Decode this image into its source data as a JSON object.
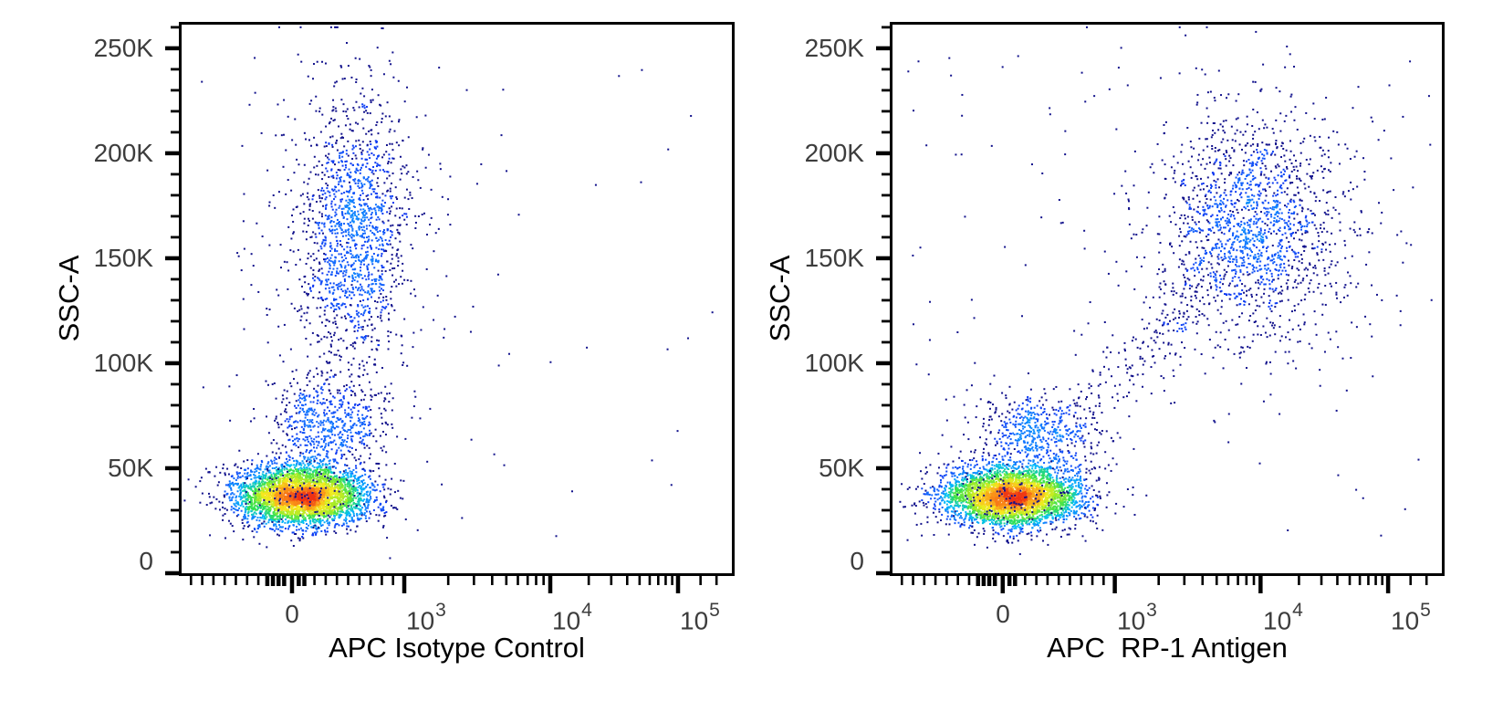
{
  "figure": {
    "background": "#ffffff",
    "description": "Two-panel flow cytometry pseudocolor dot plot, SSC-A versus APC fluorescence"
  },
  "colors": {
    "axis": "#000000",
    "tick_label": "#3d3d3d",
    "density_scale": [
      "#08088f",
      "#0a1eeb",
      "#146eff",
      "#00befa",
      "#32e150",
      "#a0eb28",
      "#f5eb1e",
      "#fa9619",
      "#ee3214"
    ],
    "sparse_dot": "#12128c"
  },
  "chart_data": [
    {
      "type": "scatter",
      "subtype": "flow_cytometry_pseudocolor_density",
      "panel": "left",
      "xlabel": "APC Isotype Control",
      "ylabel": "SSC-A",
      "x_scale": "biexponential",
      "y_scale": "linear",
      "y_range": [
        0,
        262144
      ],
      "x_ticks": [
        {
          "label": "0",
          "base": "0",
          "exp": "",
          "value": 0
        },
        {
          "label": "10^3",
          "base": "10",
          "exp": "3",
          "value": 1000
        },
        {
          "label": "10^4",
          "base": "10",
          "exp": "4",
          "value": 10000
        },
        {
          "label": "10^5",
          "base": "10",
          "exp": "5",
          "value": 100000
        }
      ],
      "y_ticks": [
        {
          "label": "250K",
          "value": 250000
        },
        {
          "label": "200K",
          "value": 200000
        },
        {
          "label": "150K",
          "value": 150000
        },
        {
          "label": "100K",
          "value": 100000
        },
        {
          "label": "50K",
          "value": 50000
        },
        {
          "label": "0",
          "value": 0
        }
      ],
      "x_scale_anchors": {
        "zero": 0.2036,
        "e3": 0.4056,
        "e4": 0.6683,
        "e5": 0.8982
      },
      "y_minor_step": 10000,
      "populations": [
        {
          "name": "main-low-ssc-population",
          "kind": "gauss",
          "apc_center": 80,
          "apc_sigma": 300,
          "ssc_center": 37000,
          "ssc_sigma": 7200,
          "n": 3900
        },
        {
          "name": "funnel-above-main",
          "kind": "gauss",
          "apc_center": 320,
          "apc_sigma": 260,
          "ssc_center": 70000,
          "ssc_sigma": 11000,
          "n": 560
        },
        {
          "name": "high-ssc-smear",
          "kind": "gauss",
          "apc_center": 550,
          "apc_sigma": 230,
          "ssc_center": 160000,
          "ssc_sigma": 32000,
          "n": 1260
        },
        {
          "name": "high-ssc-smear-halo",
          "kind": "gauss",
          "apc_center": 520,
          "apc_sigma": 400,
          "ssc_center": 158000,
          "ssc_sigma": 45000,
          "n": 320
        },
        {
          "name": "overplot-speckle",
          "kind": "gauss",
          "apc_center": 80,
          "apc_sigma": 320,
          "ssc_center": 37000,
          "ssc_sigma": 7800,
          "n": 130,
          "color": "navy"
        },
        {
          "name": "sparse-left-region",
          "kind": "uniform",
          "u_range": [
            0.03,
            0.62
          ],
          "ssc_range": [
            15000,
            248000
          ],
          "n": 70
        },
        {
          "name": "sparse-whole-plot",
          "kind": "uniform",
          "u_range": [
            0.03,
            0.97
          ],
          "ssc_range": [
            15000,
            248000
          ],
          "n": 40
        }
      ]
    },
    {
      "type": "scatter",
      "subtype": "flow_cytometry_pseudocolor_density",
      "panel": "right",
      "xlabel": "APC  RP-1 Antigen",
      "ylabel": "SSC-A",
      "x_scale": "biexponential",
      "y_scale": "linear",
      "y_range": [
        0,
        262144
      ],
      "x_ticks": [
        {
          "label": "0",
          "base": "0",
          "exp": "",
          "value": 0
        },
        {
          "label": "10^3",
          "base": "10",
          "exp": "3",
          "value": 1000
        },
        {
          "label": "10^4",
          "base": "10",
          "exp": "4",
          "value": 10000
        },
        {
          "label": "10^5",
          "base": "10",
          "exp": "5",
          "value": 100000
        }
      ],
      "y_ticks": [
        {
          "label": "250K",
          "value": 250000
        },
        {
          "label": "200K",
          "value": 200000
        },
        {
          "label": "150K",
          "value": 150000
        },
        {
          "label": "100K",
          "value": 100000
        },
        {
          "label": "50K",
          "value": 50000
        },
        {
          "label": "0",
          "value": 0
        }
      ],
      "x_scale_anchors": {
        "zero": 0.2036,
        "e3": 0.4056,
        "e4": 0.6683,
        "e5": 0.8982
      },
      "y_minor_step": 10000,
      "populations": [
        {
          "name": "main-low-ssc-population",
          "kind": "gauss",
          "apc_center": 80,
          "apc_sigma": 310,
          "ssc_center": 36500,
          "ssc_sigma": 7200,
          "n": 3900
        },
        {
          "name": "funnel-above-main",
          "kind": "gauss",
          "apc_center": 300,
          "apc_sigma": 280,
          "ssc_center": 66000,
          "ssc_sigma": 10500,
          "n": 520
        },
        {
          "name": "rp1-positive-high-ssc-cluster",
          "kind": "gauss",
          "apc_center": 8700,
          "sigma_u": 0.082,
          "ssc_center": 165000,
          "ssc_sigma": 25000,
          "n": 1350
        },
        {
          "name": "rp1-positive-cluster-halo",
          "kind": "gauss",
          "apc_center": 8700,
          "sigma_u": 0.13,
          "ssc_center": 162000,
          "ssc_sigma": 40000,
          "n": 330
        },
        {
          "name": "diagonal-trail",
          "kind": "trail",
          "apc_from": 600,
          "ssc_from": 62000,
          "apc_to": 5500,
          "ssc_to": 145000,
          "sigma_u": 0.028,
          "ssc_sigma": 10000,
          "n": 240
        },
        {
          "name": "overplot-speckle",
          "kind": "gauss",
          "apc_center": 80,
          "apc_sigma": 330,
          "ssc_center": 36500,
          "ssc_sigma": 7800,
          "n": 130,
          "color": "navy"
        },
        {
          "name": "sparse-left-region",
          "kind": "uniform",
          "u_range": [
            0.03,
            0.5
          ],
          "ssc_range": [
            15000,
            248000
          ],
          "n": 55
        },
        {
          "name": "sparse-whole-plot",
          "kind": "uniform",
          "u_range": [
            0.03,
            0.97
          ],
          "ssc_range": [
            15000,
            248000
          ],
          "n": 55
        }
      ]
    }
  ]
}
